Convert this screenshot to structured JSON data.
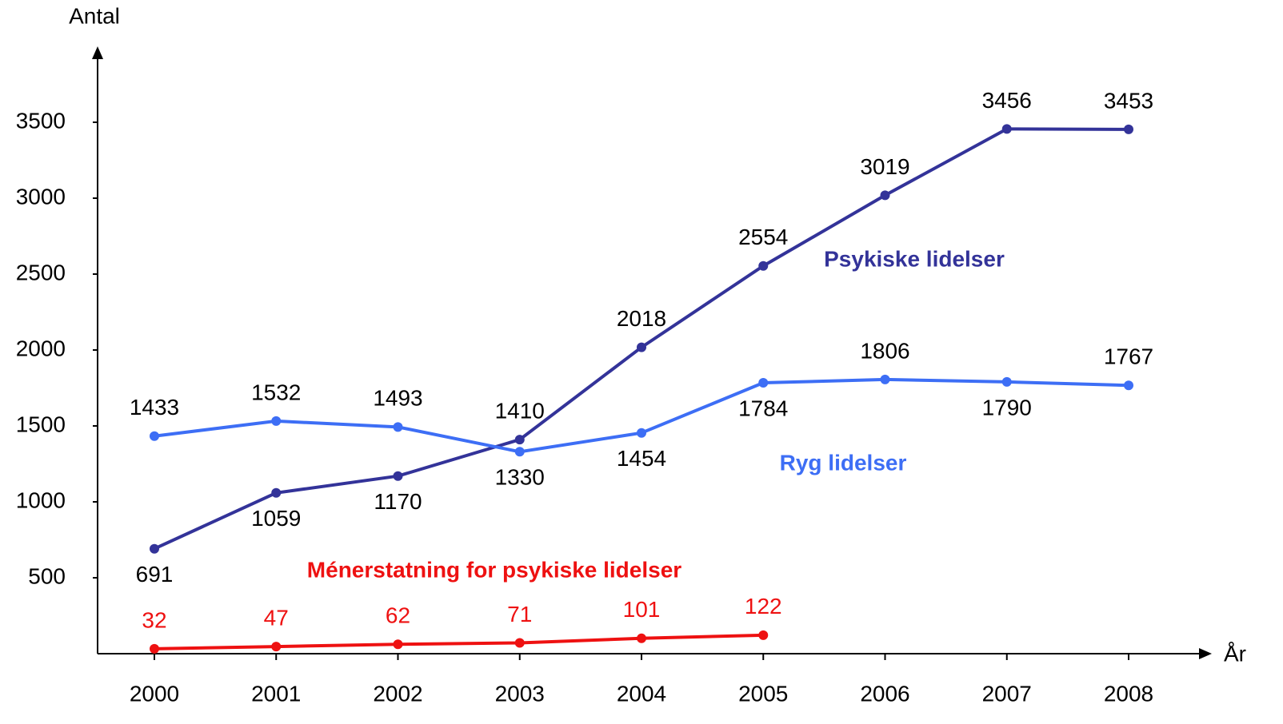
{
  "chart_data": {
    "type": "line",
    "y_label": "Antal",
    "x_label": "År",
    "categories": [
      "2000",
      "2001",
      "2002",
      "2003",
      "2004",
      "2005",
      "2006",
      "2007",
      "2008"
    ],
    "series": [
      {
        "name": "Psykiske lidelser",
        "color": "#333399",
        "values": [
          691,
          1059,
          1170,
          1410,
          2018,
          2554,
          3019,
          3456,
          3453
        ]
      },
      {
        "name": "Ryg lidelser",
        "color": "#3d6ef5",
        "values": [
          1433,
          1532,
          1493,
          1330,
          1454,
          1784,
          1806,
          1790,
          1767
        ]
      },
      {
        "name": "Ménerstatning for psykiske lidelser",
        "color": "#ee1111",
        "values": [
          32,
          47,
          62,
          71,
          101,
          122,
          null,
          null,
          null
        ]
      }
    ],
    "ylim": [
      0,
      4000
    ],
    "yticks": [
      500,
      1000,
      1500,
      2000,
      2500,
      3000,
      3500
    ]
  }
}
